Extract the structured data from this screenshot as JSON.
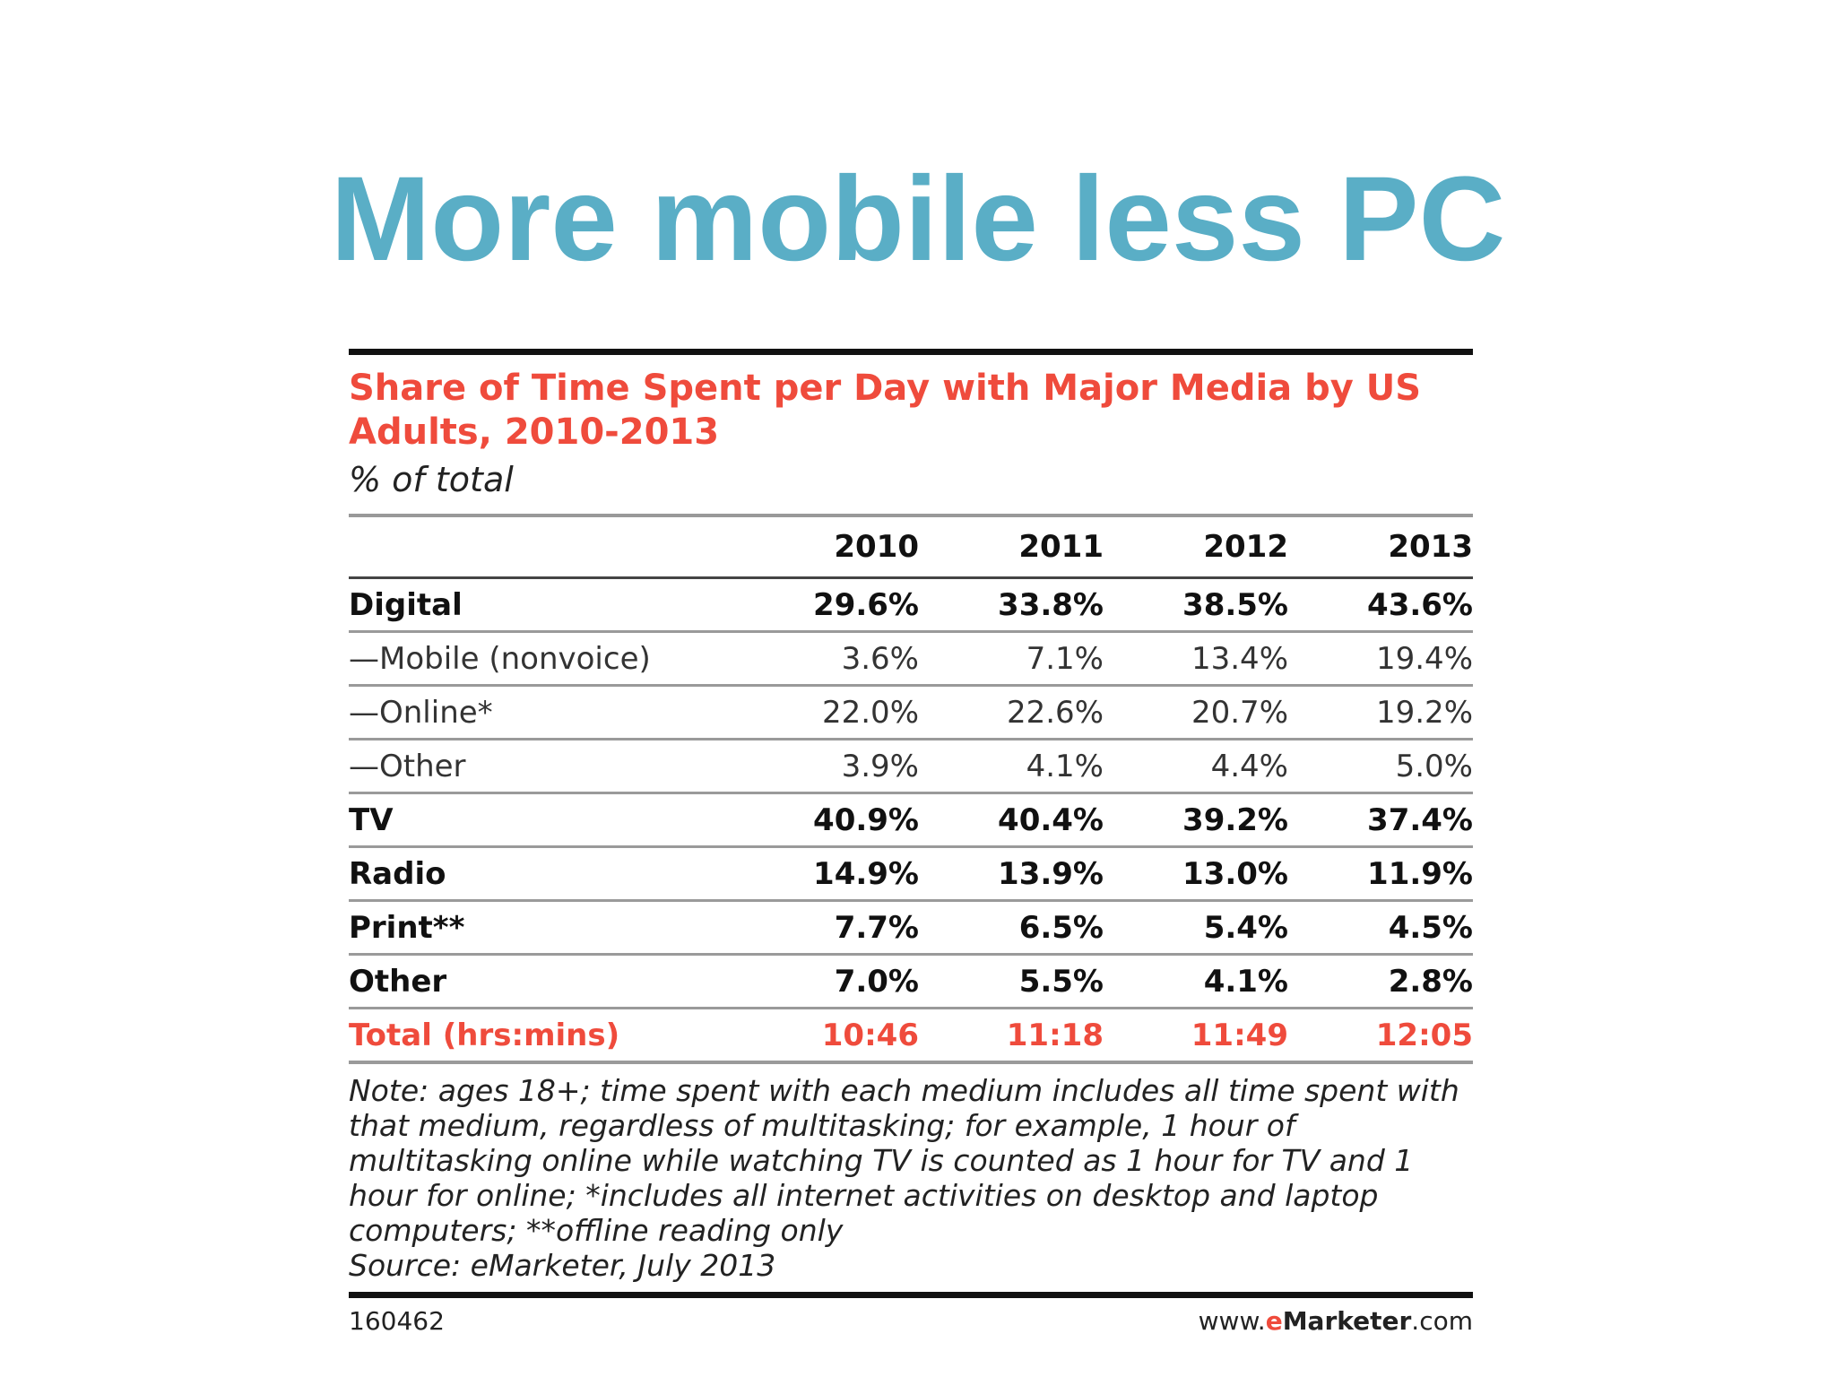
{
  "slide": {
    "title": "More mobile less PC"
  },
  "chart_data": {
    "type": "table",
    "title": "Share of Time Spent per Day with Major Media by US Adults, 2010-2013",
    "subtitle": "% of total",
    "columns": [
      "2010",
      "2011",
      "2012",
      "2013"
    ],
    "rows": [
      {
        "label": "Digital",
        "values": [
          "29.6%",
          "33.8%",
          "38.5%",
          "43.6%"
        ],
        "style": "bold"
      },
      {
        "label": "—Mobile (nonvoice)",
        "values": [
          "3.6%",
          "7.1%",
          "13.4%",
          "19.4%"
        ],
        "style": "sub"
      },
      {
        "label": "—Online*",
        "values": [
          "22.0%",
          "22.6%",
          "20.7%",
          "19.2%"
        ],
        "style": "sub"
      },
      {
        "label": "—Other",
        "values": [
          "3.9%",
          "4.1%",
          "4.4%",
          "5.0%"
        ],
        "style": "sub"
      },
      {
        "label": "TV",
        "values": [
          "40.9%",
          "40.4%",
          "39.2%",
          "37.4%"
        ],
        "style": "bold"
      },
      {
        "label": "Radio",
        "values": [
          "14.9%",
          "13.9%",
          "13.0%",
          "11.9%"
        ],
        "style": "bold"
      },
      {
        "label": "Print**",
        "values": [
          "7.7%",
          "6.5%",
          "5.4%",
          "4.5%"
        ],
        "style": "bold"
      },
      {
        "label": "Other",
        "values": [
          "7.0%",
          "5.5%",
          "4.1%",
          "2.8%"
        ],
        "style": "bold"
      },
      {
        "label": "Total (hrs:mins)",
        "values": [
          "10:46",
          "11:18",
          "11:49",
          "12:05"
        ],
        "style": "total"
      }
    ],
    "note": "Note: ages 18+; time spent with each medium includes all time spent with that medium, regardless of multitasking; for example, 1 hour of multitasking online while watching TV is counted as 1 hour for TV and 1 hour for online; *includes all internet activities on desktop and laptop computers; **offline reading only",
    "source": "Source: eMarketer, July 2013",
    "chart_id": "160462",
    "brand": {
      "prefix": "www.",
      "accent": "e",
      "name": "Marketer",
      "suffix": ".com"
    },
    "colors": {
      "title": "#ef4b3c",
      "total_row": "#ef4b3c",
      "slide_title": "#5aaec6"
    }
  }
}
